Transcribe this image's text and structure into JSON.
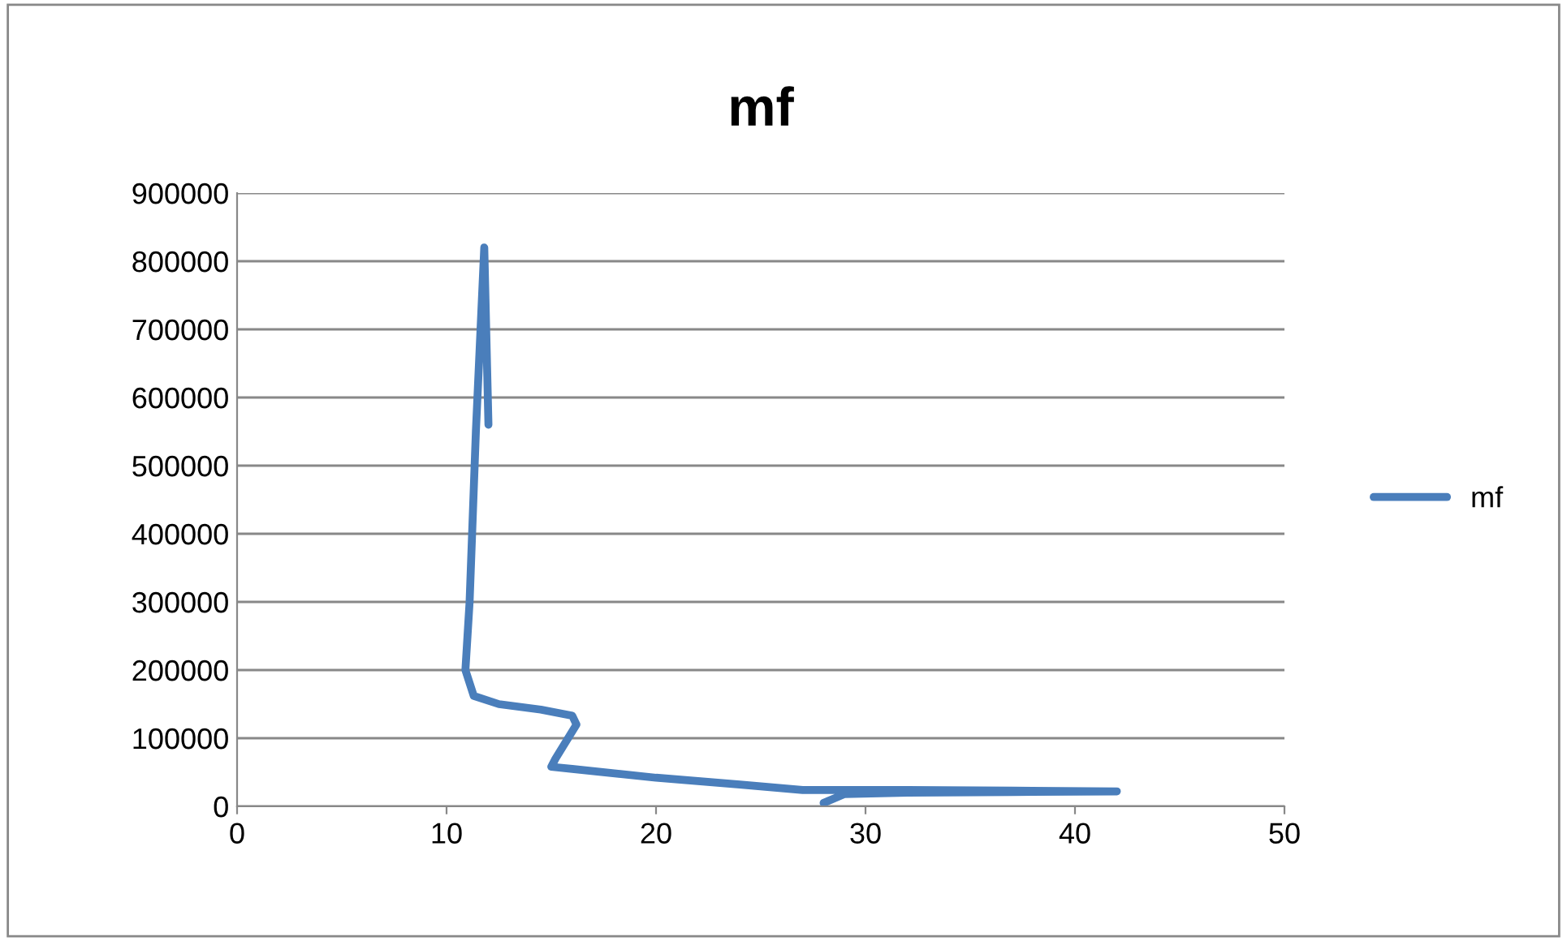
{
  "chart_data": {
    "type": "line",
    "title": "mf",
    "xlim": [
      0,
      50
    ],
    "xticks": [
      0,
      10,
      20,
      30,
      40,
      50
    ],
    "ylim": [
      0,
      900000
    ],
    "yticks": [
      0,
      100000,
      200000,
      300000,
      400000,
      500000,
      600000,
      700000,
      800000,
      900000
    ],
    "grid": "y",
    "legend": "right",
    "marker": "none",
    "line_style": "solid",
    "series": [
      {
        "name": "mf",
        "color": "#4a7ebb",
        "x": [
          12,
          11.8,
          11.4,
          11.1,
          10.9,
          11.3,
          12.5,
          14.5,
          16,
          16.2,
          15.2,
          15,
          16,
          20,
          24,
          27,
          32,
          37,
          42,
          37,
          32,
          29,
          28
        ],
        "values": [
          560000,
          820000,
          550000,
          300000,
          200000,
          162000,
          150000,
          142000,
          133000,
          120000,
          70000,
          58000,
          55000,
          42000,
          32000,
          24000,
          24000,
          23000,
          22000,
          21000,
          20000,
          18000,
          5000
        ]
      }
    ]
  }
}
